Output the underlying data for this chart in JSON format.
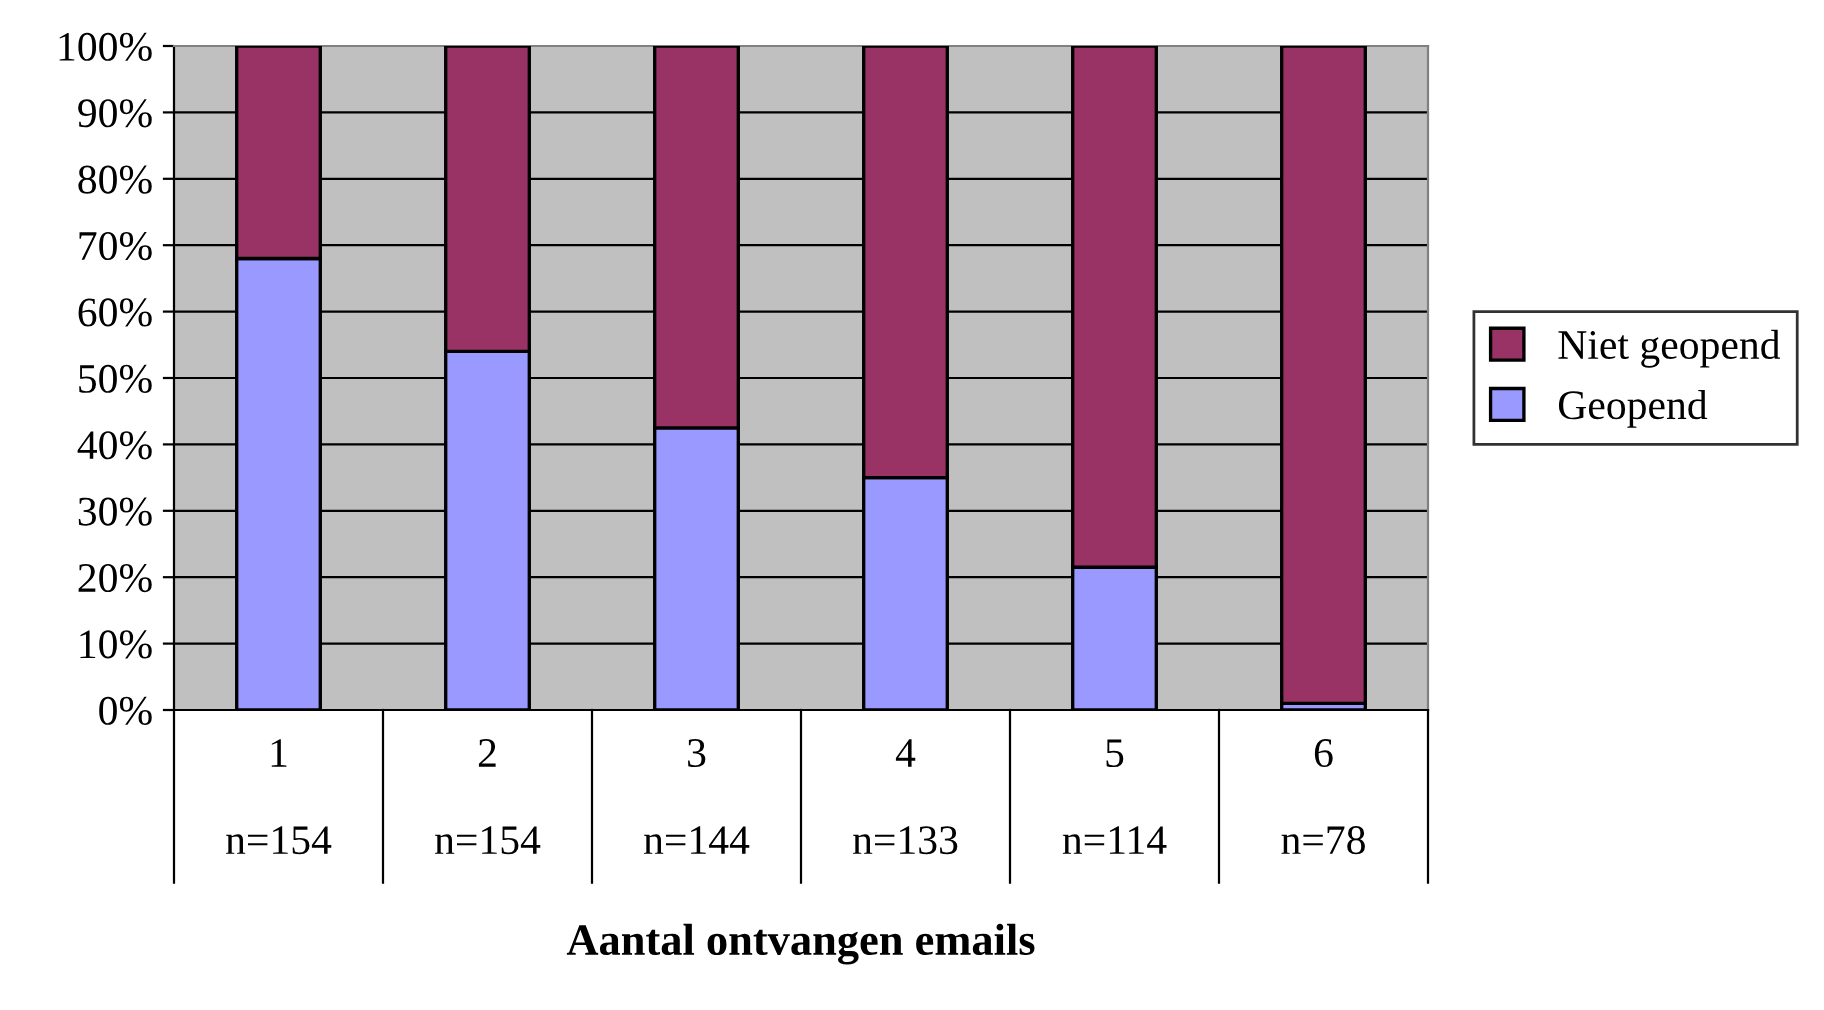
{
  "chart_data": {
    "type": "bar",
    "stacked": true,
    "xlabel": "Aantal ontvangen emails",
    "categories": [
      "1\n\nn=154",
      "2\n\nn=154",
      "3\n\nn=144",
      "4\n\nn=133",
      "5\n\nn=114",
      "6\n\nn=78"
    ],
    "series": [
      {
        "name": "Geopend",
        "color": "#9999ff",
        "values": [
          68,
          54,
          42.5,
          35,
          21.5,
          1
        ]
      },
      {
        "name": "Niet geopend",
        "color": "#993366",
        "values": [
          32,
          46,
          57.5,
          65,
          78.5,
          99
        ]
      }
    ],
    "ylim": [
      0,
      100
    ],
    "yticks": [
      {
        "value": 0,
        "label": "0%"
      },
      {
        "value": 10,
        "label": "10%"
      },
      {
        "value": 20,
        "label": "20%"
      },
      {
        "value": 30,
        "label": "30%"
      },
      {
        "value": 40,
        "label": "40%"
      },
      {
        "value": 50,
        "label": "50%"
      },
      {
        "value": 60,
        "label": "60%"
      },
      {
        "value": 70,
        "label": "70%"
      },
      {
        "value": 80,
        "label": "80%"
      },
      {
        "value": 90,
        "label": "90%"
      },
      {
        "value": 100,
        "label": "100%"
      }
    ],
    "grid": "y",
    "legend": "right"
  }
}
